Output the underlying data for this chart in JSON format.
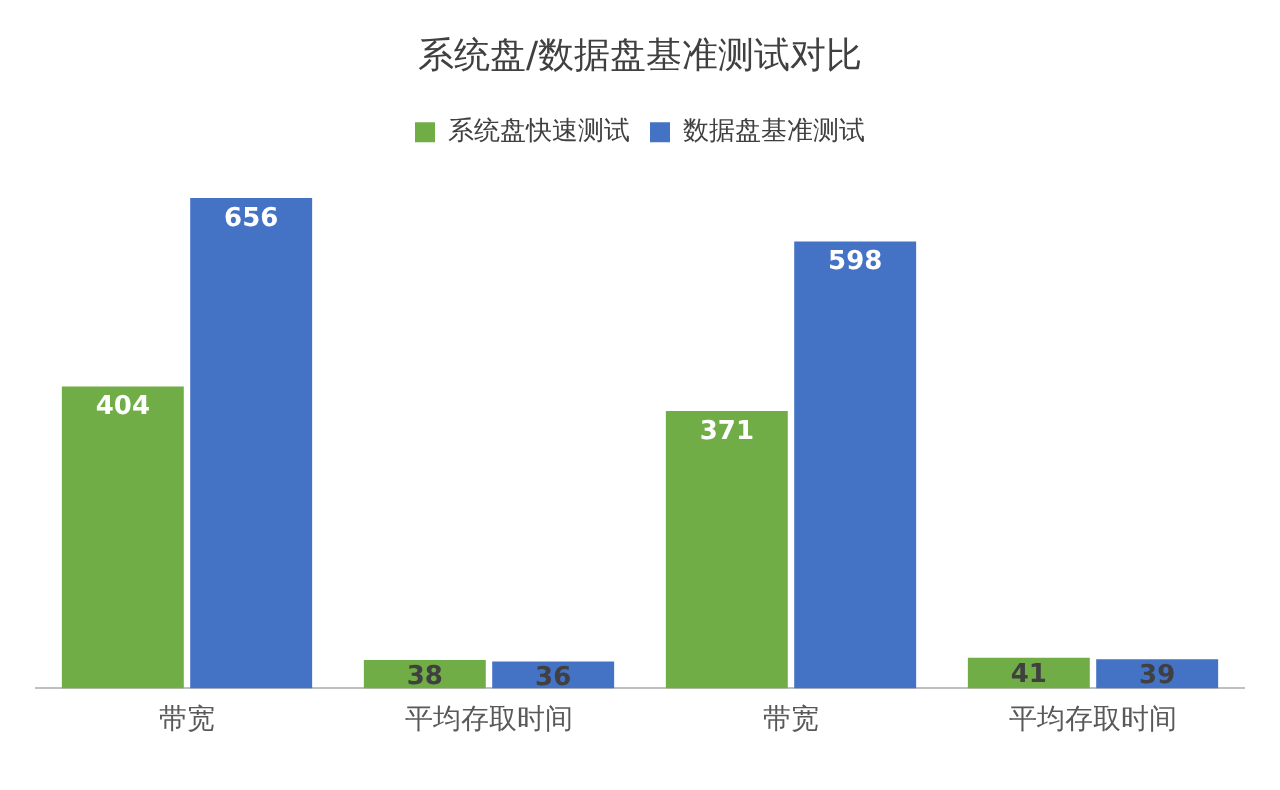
{
  "chart_data": {
    "type": "bar",
    "title": "系统盘/数据盘基准测试对比",
    "categories": [
      "带宽",
      "平均存取时间",
      "带宽",
      "平均存取时间"
    ],
    "series": [
      {
        "name": "系统盘快速测试",
        "color": "#70ad47",
        "values": [
          404,
          38,
          371,
          41
        ]
      },
      {
        "name": "数据盘基准测试",
        "color": "#4472c4",
        "values": [
          656,
          36,
          598,
          39
        ]
      }
    ],
    "data_labels": true,
    "legend": "top",
    "grid": false
  }
}
